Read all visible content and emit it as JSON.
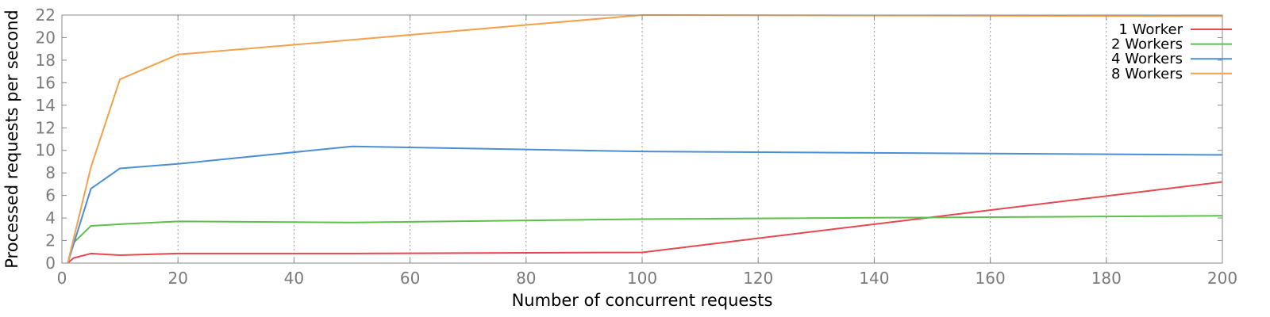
{
  "chart_data": {
    "type": "line",
    "title": "",
    "xlabel": "Number of concurrent requests",
    "ylabel": "Processed requests per second",
    "xlim": [
      0,
      200
    ],
    "ylim": [
      0,
      22
    ],
    "xticks": [
      0,
      20,
      40,
      60,
      80,
      100,
      120,
      140,
      160,
      180,
      200
    ],
    "yticks": [
      0,
      2,
      4,
      6,
      8,
      10,
      12,
      14,
      16,
      18,
      20,
      22
    ],
    "grid": "vertical dotted",
    "legend_position": "top-right",
    "series": [
      {
        "name": "1 Worker",
        "color": "#e8474f",
        "points": [
          [
            1,
            0.0
          ],
          [
            2,
            0.45
          ],
          [
            5,
            0.85
          ],
          [
            10,
            0.7
          ],
          [
            20,
            0.85
          ],
          [
            50,
            0.85
          ],
          [
            100,
            0.95
          ],
          [
            200,
            7.2
          ]
        ]
      },
      {
        "name": "2 Workers",
        "color": "#5ebf4a",
        "points": [
          [
            1,
            0.0
          ],
          [
            2,
            1.8
          ],
          [
            5,
            3.3
          ],
          [
            10,
            3.45
          ],
          [
            20,
            3.7
          ],
          [
            50,
            3.6
          ],
          [
            100,
            3.9
          ],
          [
            200,
            4.2
          ]
        ]
      },
      {
        "name": "4 Workers",
        "color": "#4a8fd4",
        "points": [
          [
            1,
            0.0
          ],
          [
            5,
            6.6
          ],
          [
            10,
            8.4
          ],
          [
            20,
            8.8
          ],
          [
            50,
            10.35
          ],
          [
            100,
            9.9
          ],
          [
            200,
            9.6
          ]
        ]
      },
      {
        "name": "8 Workers",
        "color": "#f5a04a",
        "points": [
          [
            1,
            0.0
          ],
          [
            5,
            8.5
          ],
          [
            10,
            16.3
          ],
          [
            20,
            18.5
          ],
          [
            50,
            19.8
          ],
          [
            100,
            22.0
          ],
          [
            200,
            21.9
          ]
        ]
      }
    ]
  }
}
